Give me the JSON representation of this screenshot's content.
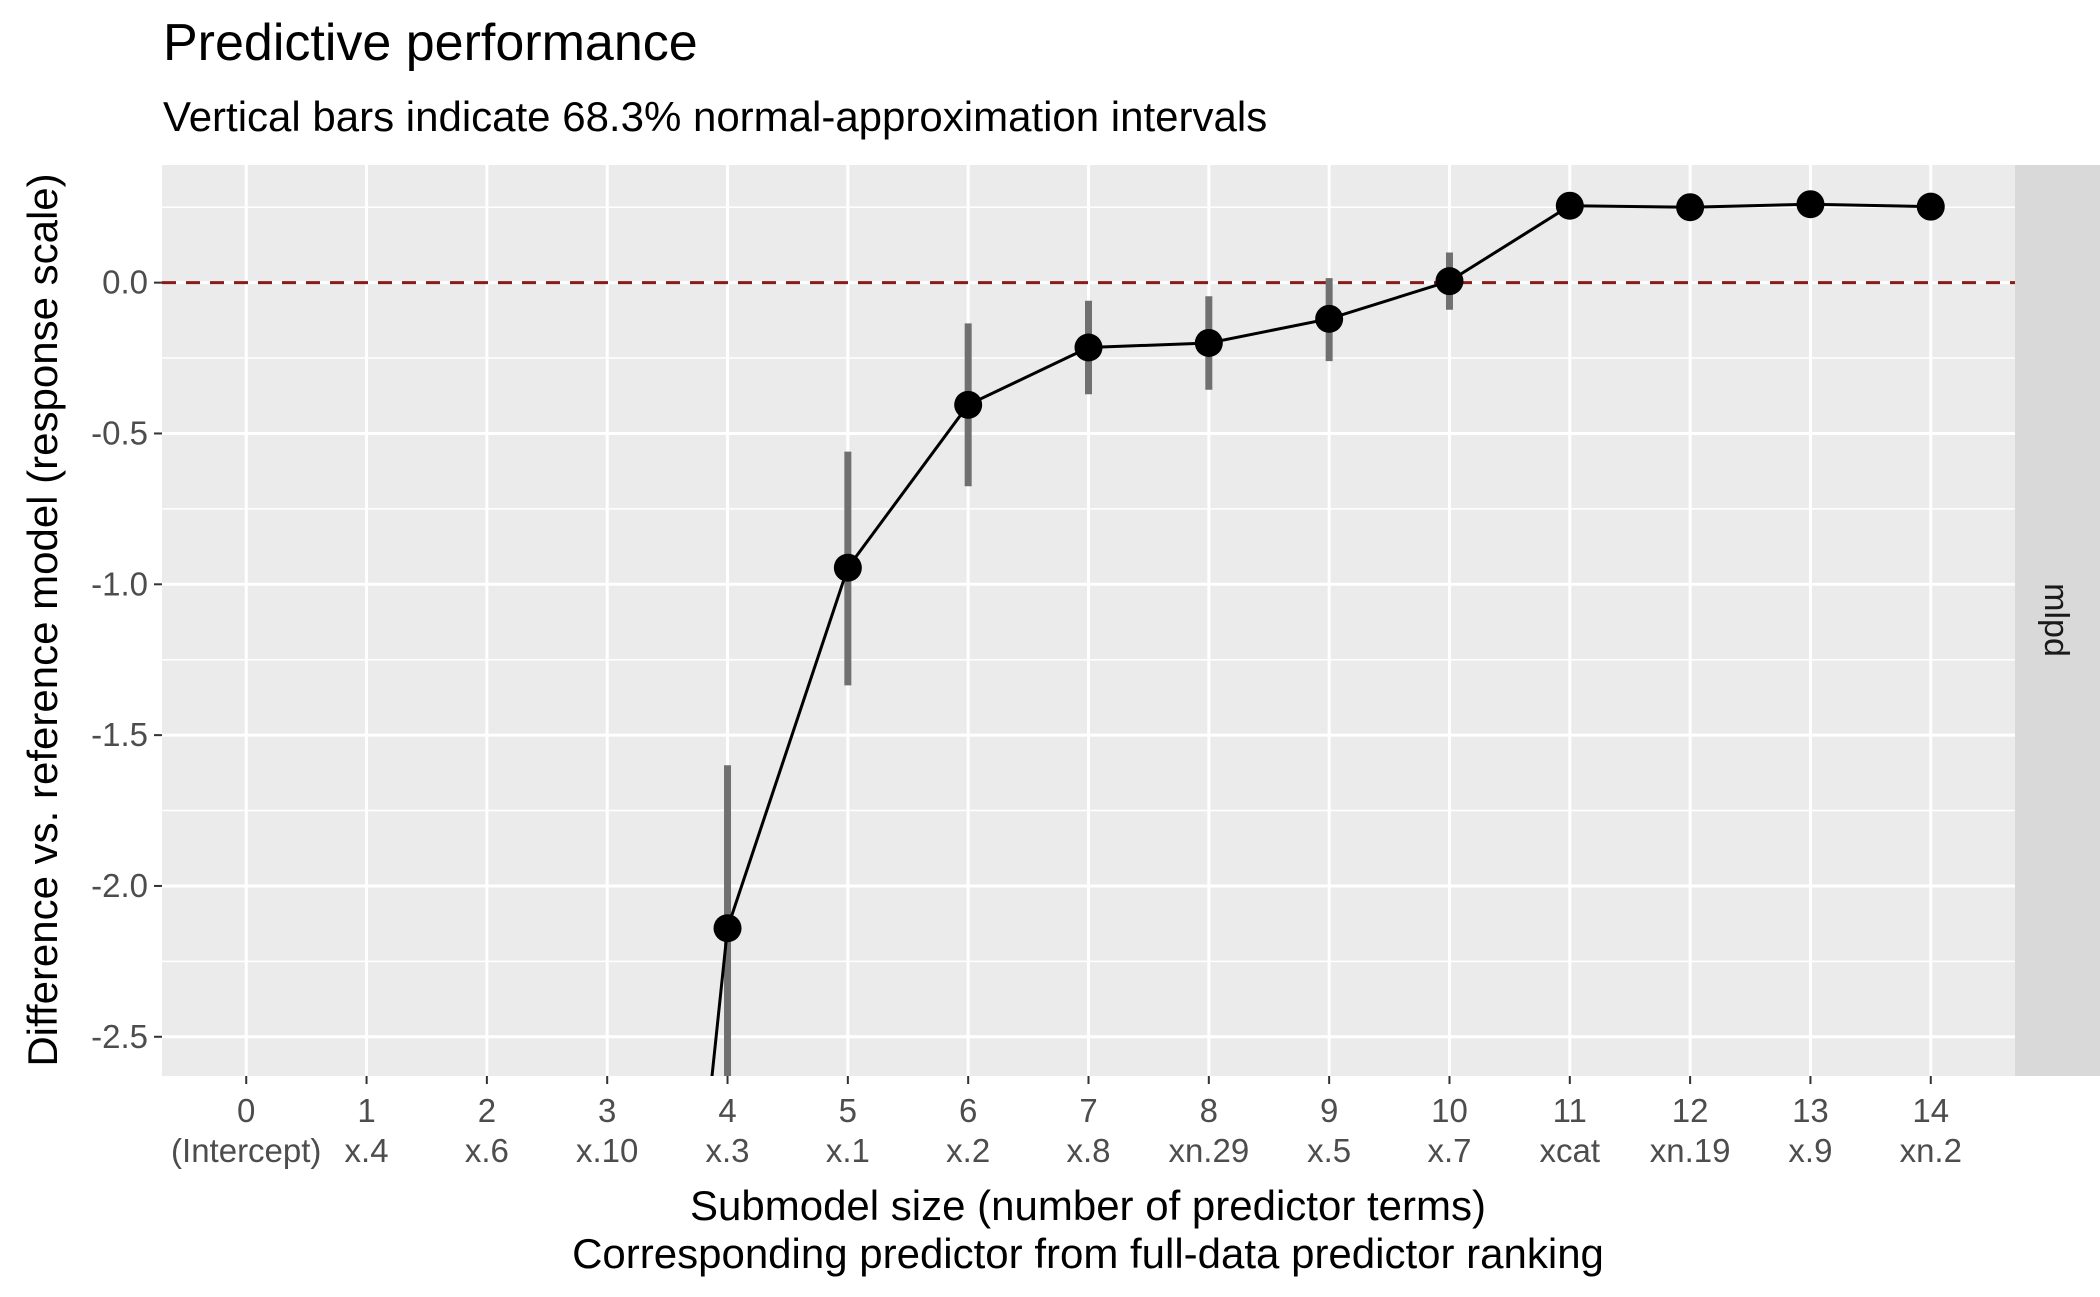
{
  "chart_data": {
    "type": "line",
    "title": "Predictive performance",
    "subtitle": "Vertical bars indicate 68.3% normal-approximation intervals",
    "xlabel": "Submodel size (number of predictor terms)",
    "xlabel2": "Corresponding predictor from full-data predictor ranking",
    "ylabel": "Difference vs. reference model (response scale)",
    "facet_label": "mlpd",
    "x": [
      0,
      1,
      2,
      3,
      4,
      5,
      6,
      7,
      8,
      9,
      10,
      11,
      12,
      13,
      14
    ],
    "x_tick_labels": [
      "0",
      "1",
      "2",
      "3",
      "4",
      "5",
      "6",
      "7",
      "8",
      "9",
      "10",
      "11",
      "12",
      "13",
      "14"
    ],
    "x_predictor_labels": [
      "(Intercept)",
      "x.4",
      "x.6",
      "x.10",
      "x.3",
      "x.1",
      "x.2",
      "x.8",
      "xn.29",
      "x.5",
      "x.7",
      "xcat",
      "xn.19",
      "x.9",
      "xn.2"
    ],
    "y_ticks": [
      0.0,
      -0.5,
      -1.0,
      -1.5,
      -2.0,
      -2.5
    ],
    "y_tick_labels": [
      "0.0",
      "-0.5",
      "-1.0",
      "-1.5",
      "-2.0",
      "-2.5"
    ],
    "ylim": [
      -2.63,
      0.39
    ],
    "xlim": [
      -0.7,
      14.7
    ],
    "reference_line": {
      "y": 0.0,
      "style": "dashed",
      "color": "#8b1a1a"
    },
    "series": [
      {
        "x": [
          4,
          5,
          6,
          7,
          8,
          9,
          10,
          11,
          12,
          13,
          14
        ],
        "y": [
          -2.14,
          -0.945,
          -0.405,
          -0.215,
          -0.2,
          -0.12,
          0.005,
          0.255,
          0.25,
          0.26,
          0.252
        ],
        "lower": [
          -2.66,
          -1.335,
          -0.675,
          -0.37,
          -0.355,
          -0.26,
          -0.09,
          null,
          null,
          null,
          null
        ],
        "upper": [
          -1.6,
          -0.56,
          -0.135,
          -0.06,
          -0.045,
          0.015,
          0.1,
          null,
          null,
          null,
          null
        ]
      }
    ],
    "offscreen_line_to": {
      "x": 3.8,
      "y": -2.9
    },
    "grid": true,
    "colors": {
      "panel_background": "#ebebeb",
      "grid": "#ffffff",
      "point": "#000000",
      "line": "#000000",
      "interval": "#707070",
      "strip_background": "#d9d9d9"
    }
  }
}
